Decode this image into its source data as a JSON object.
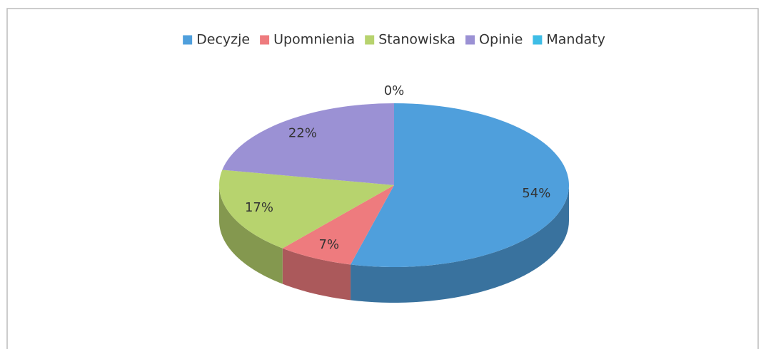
{
  "chart_data": {
    "type": "pie",
    "three_d": true,
    "categories": [
      "Decyzje",
      "Upomnienia",
      "Stanowiska",
      "Opinie",
      "Mandaty"
    ],
    "values": [
      54,
      7,
      17,
      22,
      0
    ],
    "value_labels": [
      "54%",
      "7%",
      "17%",
      "22%",
      "0%"
    ],
    "colors": [
      "#4f9fdc",
      "#ee7b7e",
      "#b7d36e",
      "#9b91d4",
      "#3ebde6"
    ],
    "legend": "top"
  }
}
